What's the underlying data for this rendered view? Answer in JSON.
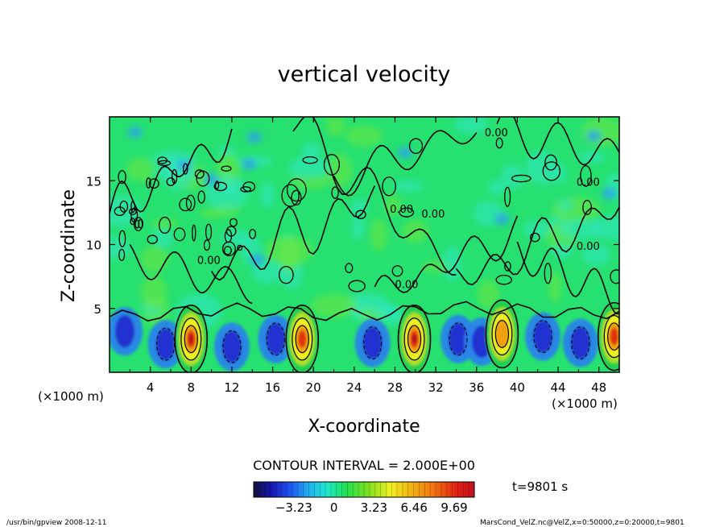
{
  "chart_data": {
    "type": "heatmap",
    "title": "vertical velocity",
    "xlabel": "X-coordinate",
    "ylabel": "Z-coordinate",
    "x_unit": "(×1000 m)",
    "z_unit": "(×1000 m)",
    "xlim": [
      0,
      50
    ],
    "ylim": [
      0,
      20
    ],
    "x_ticks": [
      4,
      8,
      12,
      16,
      20,
      24,
      28,
      32,
      36,
      40,
      44,
      48
    ],
    "y_ticks": [
      5,
      10,
      15
    ],
    "contour_interval_text": "CONTOUR INTERVAL = 2.000E+00",
    "contour_labels": [
      {
        "text": "0.00",
        "x": 8.6,
        "z": 8.5
      },
      {
        "text": "0.00",
        "x": 27.5,
        "z": 12.5
      },
      {
        "text": "0.00",
        "x": 28.0,
        "z": 6.6
      },
      {
        "text": "0.00",
        "x": 36.8,
        "z": 18.5
      },
      {
        "text": "0.00",
        "x": 45.8,
        "z": 14.6
      },
      {
        "text": "0.00",
        "x": 30.6,
        "z": 12.1
      },
      {
        "text": "0.00",
        "x": 45.8,
        "z": 9.6
      }
    ],
    "updrafts": [
      {
        "x": 8.0,
        "z": 2.6,
        "peak": 9.7
      },
      {
        "x": 18.9,
        "z": 2.6,
        "peak": 7.5
      },
      {
        "x": 29.9,
        "z": 2.6,
        "peak": 9.0
      },
      {
        "x": 38.5,
        "z": 3.0,
        "peak": 6.2
      },
      {
        "x": 49.5,
        "z": 2.8,
        "peak": 8.5
      }
    ],
    "colorbar": {
      "tick_labels": [
        "−3.23",
        "0",
        "3.23",
        "6.46",
        "9.69"
      ],
      "tick_values": [
        -3.23,
        0,
        3.23,
        6.46,
        9.69
      ],
      "range": [
        -6.46,
        11.31
      ]
    },
    "time_label": "t=9801 s",
    "colors": {
      "background": "#00e060",
      "negative": "#1020d0",
      "positive": "#d02000"
    }
  },
  "footer": {
    "left": "/usr/bin/gpview   2008-12-11",
    "right": "MarsCond_VelZ.nc@VelZ,x=0:50000,z=0:20000,t=9801"
  }
}
